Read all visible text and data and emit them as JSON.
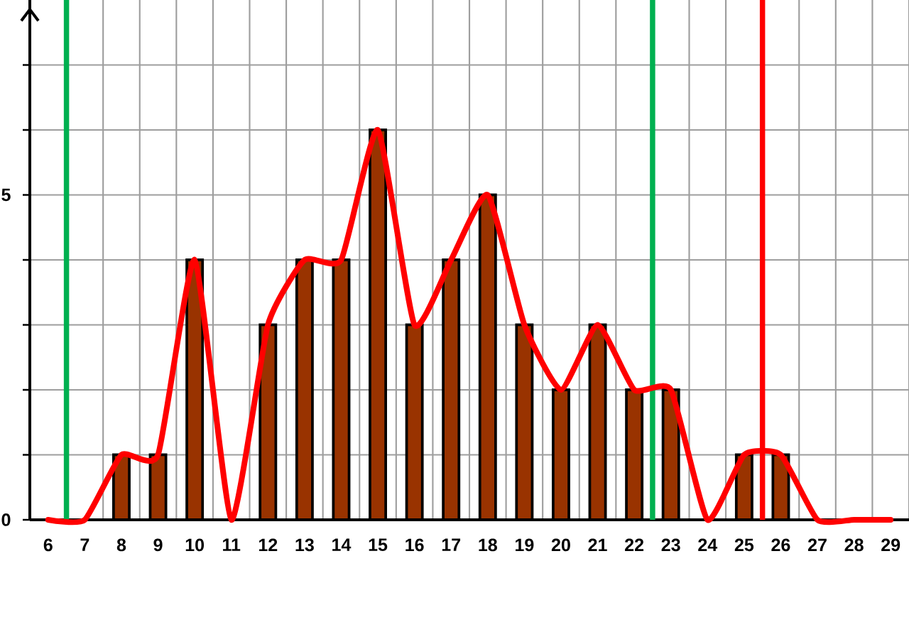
{
  "chart_data": {
    "type": "bar",
    "x": [
      6,
      7,
      8,
      9,
      10,
      11,
      12,
      13,
      14,
      15,
      16,
      17,
      18,
      19,
      20,
      21,
      22,
      23,
      24,
      25,
      26,
      27,
      28,
      29
    ],
    "series": [
      {
        "color": "#993300",
        "values": [
          null,
          null,
          1,
          1,
          4,
          null,
          3,
          4,
          4,
          6,
          3,
          4,
          5,
          3,
          2,
          3,
          2,
          2,
          null,
          1,
          1,
          null,
          null,
          null
        ]
      },
      {
        "type": "line",
        "color": "#ff0000",
        "values": [
          0,
          0,
          1,
          1,
          4,
          0,
          3,
          4,
          4,
          6,
          3,
          4,
          5,
          3,
          2,
          3,
          2,
          2,
          0,
          1,
          1,
          0,
          0,
          0
        ]
      }
    ],
    "xlim": [
      5.5,
      29.5
    ],
    "xticks": [
      6,
      7,
      8,
      9,
      10,
      11,
      12,
      13,
      14,
      15,
      16,
      17,
      18,
      19,
      20,
      21,
      22,
      23,
      24,
      25,
      26,
      27,
      28,
      29
    ],
    "ylim": [
      0,
      8
    ],
    "yticks": [
      0,
      {
        "value": 1,
        "label": null
      },
      {
        "value": 2,
        "label": null
      },
      {
        "value": 3,
        "label": null
      },
      {
        "value": 4,
        "label": null
      },
      5,
      {
        "value": 6,
        "label": null
      },
      {
        "value": 7,
        "label": null
      }
    ],
    "grid": true,
    "ref_lines": [
      {
        "axis": "x",
        "value": 6.5,
        "color": "#00b050"
      },
      {
        "axis": "x",
        "value": 22.5,
        "color": "#00b050"
      },
      {
        "axis": "x",
        "value": 25.5,
        "color": "#ff0000"
      }
    ]
  }
}
